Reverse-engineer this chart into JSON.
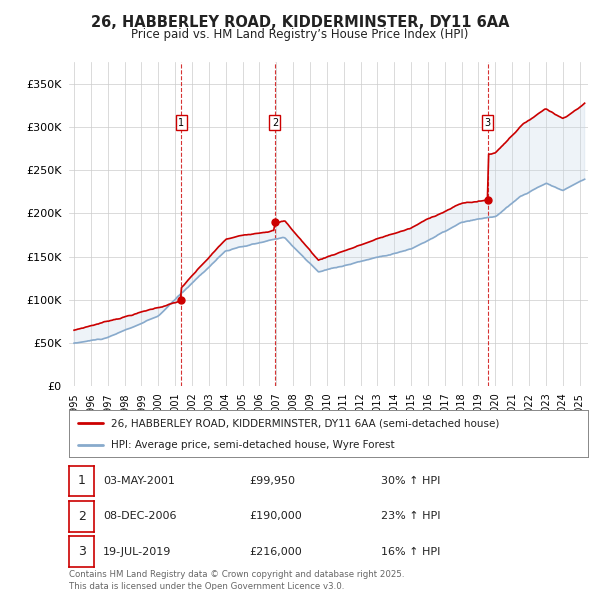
{
  "title_line1": "26, HABBERLEY ROAD, KIDDERMINSTER, DY11 6AA",
  "title_line2": "Price paid vs. HM Land Registry’s House Price Index (HPI)",
  "ytick_values": [
    0,
    50000,
    100000,
    150000,
    200000,
    250000,
    300000,
    350000
  ],
  "ylim": [
    0,
    375000
  ],
  "xlim_start": 1994.7,
  "xlim_end": 2025.5,
  "red_color": "#cc0000",
  "blue_color": "#88aacc",
  "blue_fill": "#c8d8e8",
  "purchases": [
    {
      "year": 2001.35,
      "price": 99950,
      "label": "1"
    },
    {
      "year": 2006.92,
      "price": 190000,
      "label": "2"
    },
    {
      "year": 2019.54,
      "price": 216000,
      "label": "3"
    }
  ],
  "legend_red": "26, HABBERLEY ROAD, KIDDERMINSTER, DY11 6AA (semi-detached house)",
  "legend_blue": "HPI: Average price, semi-detached house, Wyre Forest",
  "table_rows": [
    {
      "num": "1",
      "date": "03-MAY-2001",
      "price": "£99,950",
      "hpi": "30% ↑ HPI"
    },
    {
      "num": "2",
      "date": "08-DEC-2006",
      "price": "£190,000",
      "hpi": "23% ↑ HPI"
    },
    {
      "num": "3",
      "date": "19-JUL-2019",
      "price": "£216,000",
      "hpi": "16% ↑ HPI"
    }
  ],
  "footer": "Contains HM Land Registry data © Crown copyright and database right 2025.\nThis data is licensed under the Open Government Licence v3.0.",
  "background_color": "#ffffff",
  "grid_color": "#cccccc"
}
